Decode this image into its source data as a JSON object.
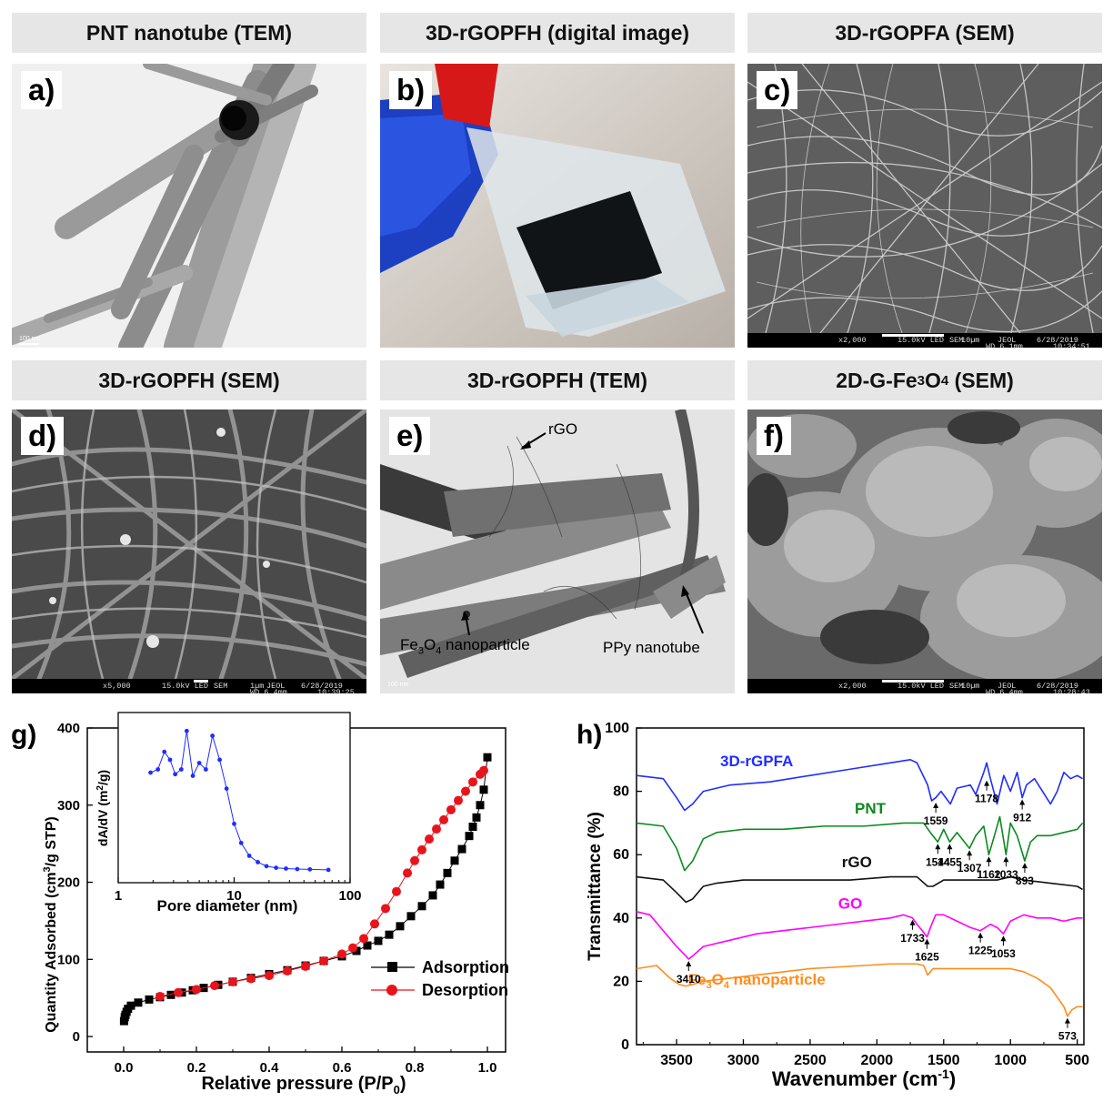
{
  "panels": {
    "a": {
      "header": "PNT nanotube (TEM)",
      "label": "a)",
      "scale": "100 nm"
    },
    "b": {
      "header": "3D-rGOPFH (digital image)",
      "label": "b)"
    },
    "c": {
      "header": "3D-rGOPFA (SEM)",
      "label": "c)",
      "bar": {
        "mag": "x2,000",
        "kv": "15.0kV LED",
        "mode": "SEM",
        "scale": "10µm",
        "brand": "JEOL",
        "wd": "WD 6.1mm",
        "date": "6/28/2019",
        "time": "10:34:51"
      }
    },
    "d": {
      "header": "3D-rGOPFH (SEM)",
      "label": "d)",
      "bar": {
        "mag": "x5,000",
        "kv": "15.0kV LED",
        "mode": "SEM",
        "scale": "1µm",
        "brand": "JEOL",
        "wd": "WD 6.4mm",
        "date": "6/28/2019",
        "time": "10:39:25"
      }
    },
    "e": {
      "header": "3D-rGOPFH (TEM)",
      "label": "e)",
      "scale": "100 nm",
      "annot_rgo": "rGO",
      "annot_fe_pre": "Fe",
      "annot_fe_sub1": "3",
      "annot_fe_mid": "O",
      "annot_fe_sub2": "4",
      "annot_fe_post": " nanoparticle",
      "annot_ppy": "PPy nanotube"
    },
    "f": {
      "header_pre": "2D-G-Fe",
      "header_sub1": "3",
      "header_mid": "O",
      "header_sub2": "4",
      "header_post": " (SEM)",
      "label": "f)",
      "bar": {
        "mag": "x2,000",
        "kv": "15.0kV LED",
        "mode": "SEM",
        "scale": "10µm",
        "brand": "JEOL",
        "wd": "WD 6.4mm",
        "date": "6/28/2019",
        "time": "10:28:43"
      }
    }
  },
  "chart_data": [
    {
      "panel": "g)",
      "type": "line",
      "xlabel_pre": "Relative pressure (P/P",
      "xlabel_sub": "0",
      "xlabel_post": ")",
      "ylabel_pre": "Quantity Adsorbed (cm",
      "ylabel_sup": "3",
      "ylabel_post": "/g STP)",
      "xlim": [
        -0.1,
        1.05
      ],
      "ylim": [
        -20,
        400
      ],
      "xticks": [
        "0.0",
        "0.2",
        "0.4",
        "0.6",
        "0.8",
        "1.0"
      ],
      "yticks": [
        "0",
        "100",
        "200",
        "300",
        "400"
      ],
      "legend": [
        "Adsorption",
        "Desorption"
      ],
      "series": [
        {
          "name": "Adsorption",
          "color": "#000000",
          "marker": "square",
          "x": [
            0.001,
            0.003,
            0.005,
            0.008,
            0.012,
            0.02,
            0.04,
            0.07,
            0.1,
            0.13,
            0.16,
            0.19,
            0.22,
            0.26,
            0.3,
            0.35,
            0.4,
            0.45,
            0.5,
            0.55,
            0.6,
            0.64,
            0.67,
            0.7,
            0.73,
            0.76,
            0.79,
            0.82,
            0.85,
            0.87,
            0.89,
            0.91,
            0.93,
            0.95,
            0.96,
            0.97,
            0.98,
            0.99,
            1.0
          ],
          "y": [
            20,
            25,
            28,
            32,
            36,
            40,
            44,
            48,
            51,
            54,
            57,
            60,
            63,
            67,
            71,
            76,
            81,
            86,
            92,
            98,
            104,
            111,
            118,
            124,
            132,
            143,
            156,
            169,
            183,
            197,
            212,
            228,
            243,
            260,
            272,
            284,
            300,
            320,
            362
          ]
        },
        {
          "name": "Desorption",
          "color": "#e8141c",
          "marker": "circle",
          "x": [
            0.99,
            0.98,
            0.96,
            0.94,
            0.92,
            0.9,
            0.88,
            0.86,
            0.84,
            0.82,
            0.8,
            0.78,
            0.75,
            0.72,
            0.69,
            0.66,
            0.63,
            0.6,
            0.55,
            0.5,
            0.45,
            0.4,
            0.35,
            0.3,
            0.25,
            0.2,
            0.15,
            0.1
          ],
          "y": [
            345,
            340,
            330,
            318,
            306,
            294,
            281,
            269,
            256,
            242,
            228,
            212,
            188,
            166,
            146,
            127,
            115,
            107,
            98,
            91,
            85,
            79,
            75,
            71,
            66,
            61,
            57,
            52
          ]
        }
      ],
      "inset": {
        "type": "line",
        "xlabel": "Pore diameter (nm)",
        "ylabel_pre": "dA/dV (m",
        "ylabel_sup": "2",
        "ylabel_post": "/g)",
        "xscale": "log",
        "xlim": [
          1,
          100
        ],
        "xticks": [
          "1",
          "10",
          "100"
        ],
        "color": "#1f2dff",
        "x": [
          1.9,
          2.2,
          2.5,
          2.8,
          3.1,
          3.5,
          3.9,
          4.4,
          5.0,
          5.7,
          6.5,
          7.5,
          8.6,
          10,
          11.5,
          13.5,
          16,
          19,
          23,
          28,
          35,
          45,
          65
        ],
        "y": [
          0.62,
          0.64,
          0.75,
          0.7,
          0.61,
          0.64,
          0.88,
          0.6,
          0.68,
          0.64,
          0.85,
          0.7,
          0.52,
          0.3,
          0.18,
          0.1,
          0.06,
          0.035,
          0.025,
          0.02,
          0.017,
          0.015,
          0.012
        ]
      }
    },
    {
      "panel": "h)",
      "type": "line",
      "xlabel_pre": "Wavenumber (cm",
      "xlabel_sup": "-1",
      "xlabel_post": ")",
      "ylabel": "Transmittance (%)",
      "xlim": [
        3800,
        450
      ],
      "ylim": [
        0,
        100
      ],
      "xticks": [
        "3500",
        "3000",
        "2500",
        "2000",
        "1500",
        "1000",
        "500"
      ],
      "yticks": [
        "0",
        "20",
        "40",
        "60",
        "80",
        "100"
      ],
      "series": [
        {
          "name": "3D-rGPFA",
          "color": "#1f2dff",
          "label_wn": 2900,
          "label_y": 88,
          "x": [
            3800,
            3600,
            3500,
            3440,
            3380,
            3300,
            3100,
            2800,
            2500,
            2200,
            1900,
            1750,
            1700,
            1620,
            1590,
            1559,
            1520,
            1450,
            1400,
            1300,
            1260,
            1200,
            1178,
            1150,
            1100,
            1050,
            1000,
            950,
            912,
            880,
            820,
            760,
            700,
            650,
            600,
            550,
            500,
            460
          ],
          "y": [
            85,
            84,
            78,
            74,
            76,
            80,
            82,
            83,
            85,
            87,
            89,
            90,
            89,
            82,
            77,
            78,
            80,
            76,
            81,
            82,
            79,
            86,
            89,
            84,
            76,
            85,
            80,
            86,
            78,
            82,
            84,
            80,
            76,
            80,
            86,
            84,
            85,
            84
          ]
        },
        {
          "name": "PNT",
          "color": "#0a8a1e",
          "label_wn": 2050,
          "label_y": 73,
          "x": [
            3800,
            3600,
            3500,
            3440,
            3380,
            3300,
            3200,
            3000,
            2700,
            2400,
            2100,
            1800,
            1650,
            1600,
            1544,
            1500,
            1455,
            1400,
            1307,
            1260,
            1200,
            1162,
            1120,
            1080,
            1033,
            1000,
            950,
            893,
            850,
            800,
            700,
            600,
            500,
            460
          ],
          "y": [
            70,
            69,
            62,
            55,
            58,
            65,
            67,
            68,
            68,
            69,
            69,
            70,
            70,
            67,
            64,
            68,
            64,
            67,
            62,
            66,
            69,
            60,
            66,
            72,
            60,
            70,
            66,
            58,
            64,
            66,
            66,
            67,
            68,
            70
          ]
        },
        {
          "name": "rGO",
          "color": "#111111",
          "label_wn": 2150,
          "label_y": 56,
          "x": [
            3800,
            3600,
            3500,
            3430,
            3380,
            3300,
            3200,
            3000,
            2800,
            2500,
            2200,
            1900,
            1700,
            1620,
            1580,
            1500,
            1300,
            1100,
            1000,
            900,
            700,
            500,
            460
          ],
          "y": [
            53,
            52,
            48,
            45,
            46,
            50,
            51,
            52,
            52,
            52,
            52,
            53,
            53,
            50,
            50,
            52,
            52,
            52,
            53,
            52,
            51,
            50,
            49
          ]
        },
        {
          "name": "GO",
          "color": "#ff00ff",
          "label_wn": 2200,
          "label_y": 43,
          "x": [
            3800,
            3700,
            3600,
            3500,
            3430,
            3410,
            3380,
            3300,
            3100,
            2900,
            2700,
            2500,
            2300,
            2100,
            1900,
            1800,
            1733,
            1700,
            1660,
            1625,
            1590,
            1560,
            1500,
            1400,
            1300,
            1225,
            1150,
            1100,
            1053,
            1000,
            900,
            800,
            700,
            600,
            500,
            460
          ],
          "y": [
            42,
            41,
            36,
            31,
            28,
            27,
            28,
            31,
            33,
            35,
            36,
            37,
            38,
            39,
            40,
            41,
            40,
            38,
            36,
            34,
            38,
            41,
            41,
            39,
            37,
            36,
            38,
            37,
            35,
            39,
            41,
            40,
            40,
            39,
            40,
            40
          ]
        },
        {
          "name_pre": "Fe",
          "name_sub1": "3",
          "name_mid": "O",
          "name_sub2": "4",
          "name_post": " nanoparticle",
          "name": "Fe3O4 nanoparticle",
          "color": "#ff8c1a",
          "label_wn": 2900,
          "label_y": 19,
          "x": [
            3800,
            3650,
            3550,
            3480,
            3430,
            3380,
            3300,
            3100,
            2900,
            2700,
            2500,
            2300,
            2100,
            1900,
            1700,
            1650,
            1620,
            1580,
            1500,
            1400,
            1300,
            1200,
            1100,
            1000,
            900,
            800,
            700,
            650,
            600,
            573,
            540,
            500,
            460
          ],
          "y": [
            24,
            25,
            21,
            19,
            18.5,
            19,
            20,
            21,
            22,
            23,
            24,
            24.5,
            25,
            25.5,
            25.5,
            25,
            22,
            24,
            24,
            24,
            24,
            24,
            24,
            24,
            23,
            21,
            18,
            15,
            12,
            9,
            11,
            12,
            12
          ]
        }
      ],
      "annotations": [
        {
          "text": "1559",
          "wn": 1559,
          "y": 77
        },
        {
          "text": "1178",
          "wn": 1178,
          "y": 84
        },
        {
          "text": "912",
          "wn": 912,
          "y": 78
        },
        {
          "text": "1544",
          "wn": 1544,
          "y": 64
        },
        {
          "text": "1455",
          "wn": 1455,
          "y": 64
        },
        {
          "text": "1307",
          "wn": 1307,
          "y": 62
        },
        {
          "text": "1162",
          "wn": 1162,
          "y": 60
        },
        {
          "text": "1033",
          "wn": 1033,
          "y": 60
        },
        {
          "text": "893",
          "wn": 893,
          "y": 58
        },
        {
          "text": "1733",
          "wn": 1733,
          "y": 40
        },
        {
          "text": "1625",
          "wn": 1625,
          "y": 34
        },
        {
          "text": "1225",
          "wn": 1225,
          "y": 36
        },
        {
          "text": "1053",
          "wn": 1053,
          "y": 35
        },
        {
          "text": "3410",
          "wn": 3410,
          "y": 27
        },
        {
          "text": "573",
          "wn": 573,
          "y": 9
        }
      ]
    }
  ]
}
